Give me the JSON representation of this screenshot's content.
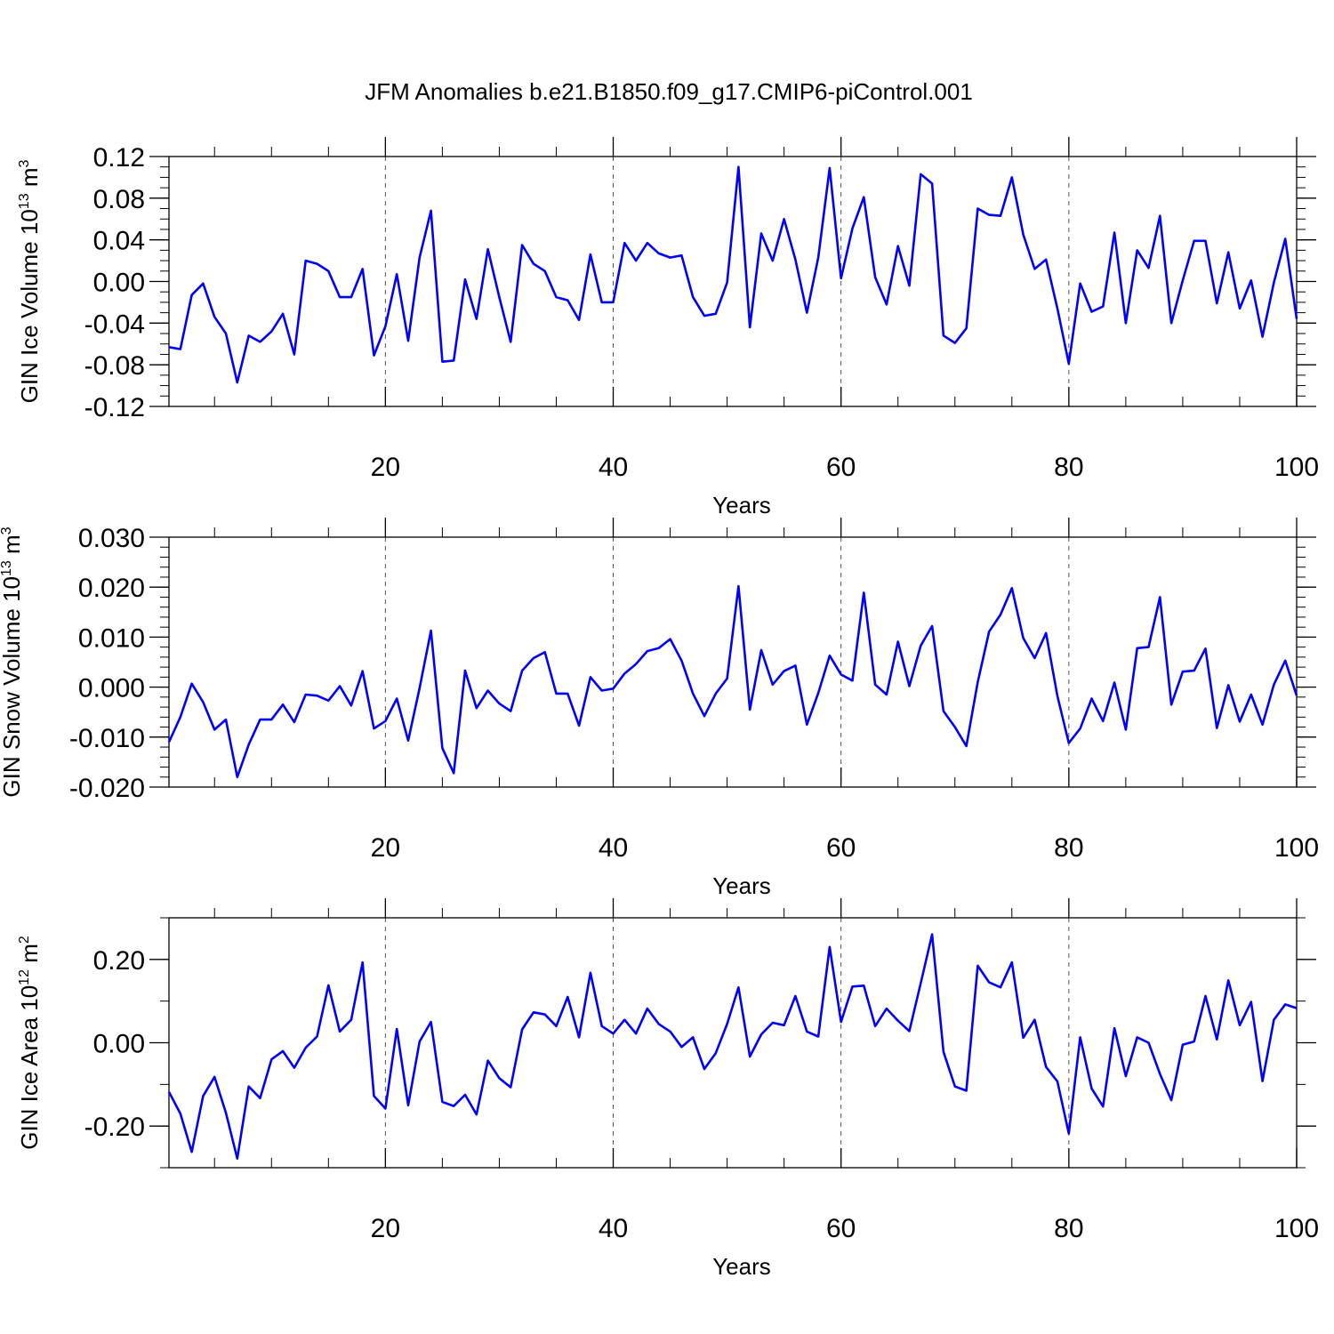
{
  "title": "JFM Anomalies b.e21.B1850.f09_g17.CMIP6-piControl.001",
  "chart_data": [
    {
      "type": "line",
      "panel": "ice-volume",
      "ylabel_main": "GIN Ice Volume 10",
      "ylabel_exp": "13",
      "ylabel_unit": "m",
      "ylabel_unit_exp": "3",
      "xlabel": "Years",
      "xlim": [
        1,
        100
      ],
      "ylim": [
        -0.12,
        0.12
      ],
      "x_ticks": [
        20,
        40,
        60,
        80,
        100
      ],
      "x_tick_labels": [
        "20",
        "40",
        "60",
        "80",
        "100"
      ],
      "y_ticks": [
        -0.12,
        -0.08,
        -0.04,
        0.0,
        0.04,
        0.08,
        0.12
      ],
      "y_tick_labels": [
        "-0.12",
        "-0.08",
        "-0.04",
        "0.00",
        "0.04",
        "0.08",
        "0.12"
      ],
      "y_minor_step": 0.01,
      "grid": "vertical-dashed",
      "color": "#0000ff",
      "x": [
        1,
        2,
        3,
        4,
        5,
        6,
        7,
        8,
        9,
        10,
        11,
        12,
        13,
        14,
        15,
        16,
        17,
        18,
        19,
        20,
        21,
        22,
        23,
        24,
        25,
        26,
        27,
        28,
        29,
        30,
        31,
        32,
        33,
        34,
        35,
        36,
        37,
        38,
        39,
        40,
        41,
        42,
        43,
        44,
        45,
        46,
        47,
        48,
        49,
        50,
        51,
        52,
        53,
        54,
        55,
        56,
        57,
        58,
        59,
        60,
        61,
        62,
        63,
        64,
        65,
        66,
        67,
        68,
        69,
        70,
        71,
        72,
        73,
        74,
        75,
        76,
        77,
        78,
        79,
        80,
        81,
        82,
        83,
        84,
        85,
        86,
        87,
        88,
        89,
        90,
        91,
        92,
        93,
        94,
        95,
        96,
        97,
        98,
        99,
        100
      ],
      "values": [
        -0.063,
        -0.065,
        -0.013,
        -0.002,
        -0.034,
        -0.05,
        -0.097,
        -0.052,
        -0.058,
        -0.048,
        -0.031,
        -0.07,
        0.02,
        0.017,
        0.01,
        -0.015,
        -0.015,
        0.012,
        -0.071,
        -0.043,
        0.007,
        -0.057,
        0.023,
        0.068,
        -0.077,
        -0.076,
        0.002,
        -0.036,
        0.031,
        -0.015,
        -0.058,
        0.035,
        0.017,
        0.01,
        -0.015,
        -0.018,
        -0.037,
        0.026,
        -0.02,
        -0.02,
        0.037,
        0.02,
        0.037,
        0.027,
        0.023,
        0.025,
        -0.015,
        -0.033,
        -0.031,
        -0.001,
        0.11,
        -0.044,
        0.046,
        0.02,
        0.06,
        0.021,
        -0.03,
        0.023,
        0.109,
        0.003,
        0.051,
        0.081,
        0.004,
        -0.022,
        0.034,
        -0.004,
        0.103,
        0.094,
        -0.052,
        -0.059,
        -0.045,
        0.07,
        0.064,
        0.063,
        0.1,
        0.045,
        0.012,
        0.021,
        -0.026,
        -0.079,
        -0.002,
        -0.029,
        -0.024,
        0.047,
        -0.04,
        0.03,
        0.013,
        0.063,
        -0.04,
        0.001,
        0.039,
        0.039,
        -0.021,
        0.028,
        -0.026,
        0.001,
        -0.053,
        -0.001,
        0.041,
        -0.036
      ]
    },
    {
      "type": "line",
      "panel": "snow-volume",
      "ylabel_main": "GIN Snow Volume 10",
      "ylabel_exp": "13",
      "ylabel_unit": "m",
      "ylabel_unit_exp": "3",
      "xlabel": "Years",
      "xlim": [
        1,
        100
      ],
      "ylim": [
        -0.02,
        0.03
      ],
      "x_ticks": [
        20,
        40,
        60,
        80,
        100
      ],
      "x_tick_labels": [
        "20",
        "40",
        "60",
        "80",
        "100"
      ],
      "y_ticks": [
        -0.02,
        -0.01,
        0.0,
        0.01,
        0.02,
        0.03
      ],
      "y_tick_labels": [
        "-0.020",
        "-0.010",
        "0.000",
        "0.010",
        "0.020",
        "0.030"
      ],
      "y_minor_step": 0.002,
      "grid": "vertical-dashed",
      "color": "#0000ff",
      "x": [
        1,
        2,
        3,
        4,
        5,
        6,
        7,
        8,
        9,
        10,
        11,
        12,
        13,
        14,
        15,
        16,
        17,
        18,
        19,
        20,
        21,
        22,
        23,
        24,
        25,
        26,
        27,
        28,
        29,
        30,
        31,
        32,
        33,
        34,
        35,
        36,
        37,
        38,
        39,
        40,
        41,
        42,
        43,
        44,
        45,
        46,
        47,
        48,
        49,
        50,
        51,
        52,
        53,
        54,
        55,
        56,
        57,
        58,
        59,
        60,
        61,
        62,
        63,
        64,
        65,
        66,
        67,
        68,
        69,
        70,
        71,
        72,
        73,
        74,
        75,
        76,
        77,
        78,
        79,
        80,
        81,
        82,
        83,
        84,
        85,
        86,
        87,
        88,
        89,
        90,
        91,
        92,
        93,
        94,
        95,
        96,
        97,
        98,
        99,
        100
      ],
      "values": [
        -0.011,
        -0.006,
        0.0007,
        -0.003,
        -0.0085,
        -0.0065,
        -0.018,
        -0.0115,
        -0.0065,
        -0.0065,
        -0.0035,
        -0.007,
        -0.0015,
        -0.0017,
        -0.0027,
        0.0002,
        -0.0037,
        0.0032,
        -0.0083,
        -0.0068,
        -0.0023,
        -0.0107,
        -0.0002,
        0.0113,
        -0.0122,
        -0.0172,
        0.0033,
        -0.0042,
        -0.0007,
        -0.0033,
        -0.0048,
        0.0033,
        0.0058,
        0.007,
        -0.0013,
        -0.0013,
        -0.0077,
        0.002,
        -0.0007,
        -0.0003,
        0.0027,
        0.0046,
        0.0072,
        0.0078,
        0.0096,
        0.0053,
        -0.0013,
        -0.0058,
        -0.0013,
        0.0017,
        0.0202,
        -0.0045,
        0.0074,
        0.0005,
        0.0032,
        0.0043,
        -0.0075,
        -0.0012,
        0.0063,
        0.0025,
        0.0013,
        0.0189,
        0.0005,
        -0.0015,
        0.0091,
        0.0002,
        0.0083,
        0.0122,
        -0.0048,
        -0.008,
        -0.0118,
        0.001,
        0.0111,
        0.0145,
        0.0198,
        0.0098,
        0.0058,
        0.0108,
        -0.0018,
        -0.0112,
        -0.0083,
        -0.0023,
        -0.0068,
        0.0009,
        -0.0085,
        0.0078,
        0.008,
        0.018,
        -0.0035,
        0.0031,
        0.0033,
        0.0077,
        -0.0082,
        0.0004,
        -0.0069,
        -0.0015,
        -0.0075,
        0.0005,
        0.0053,
        -0.0017
      ]
    },
    {
      "type": "line",
      "panel": "ice-area",
      "ylabel_main": "GIN Ice Area 10",
      "ylabel_exp": "12",
      "ylabel_unit": "m",
      "ylabel_unit_exp": "2",
      "xlabel": "Years",
      "xlim": [
        1,
        100
      ],
      "ylim": [
        -0.3,
        0.3
      ],
      "x_ticks": [
        20,
        40,
        60,
        80,
        100
      ],
      "x_tick_labels": [
        "20",
        "40",
        "60",
        "80",
        "100"
      ],
      "y_ticks": [
        -0.2,
        0.0,
        0.2
      ],
      "y_tick_labels": [
        "-0.20",
        "0.00",
        "0.20"
      ],
      "y_minor_step": 0.1,
      "grid": "vertical-dashed",
      "color": "#0000ff",
      "x": [
        1,
        2,
        3,
        4,
        5,
        6,
        7,
        8,
        9,
        10,
        11,
        12,
        13,
        14,
        15,
        16,
        17,
        18,
        19,
        20,
        21,
        22,
        23,
        24,
        25,
        26,
        27,
        28,
        29,
        30,
        31,
        32,
        33,
        34,
        35,
        36,
        37,
        38,
        39,
        40,
        41,
        42,
        43,
        44,
        45,
        46,
        47,
        48,
        49,
        50,
        51,
        52,
        53,
        54,
        55,
        56,
        57,
        58,
        59,
        60,
        61,
        62,
        63,
        64,
        65,
        66,
        67,
        68,
        69,
        70,
        71,
        72,
        73,
        74,
        75,
        76,
        77,
        78,
        79,
        80,
        81,
        82,
        83,
        84,
        85,
        86,
        87,
        88,
        89,
        90,
        91,
        92,
        93,
        94,
        95,
        96,
        97,
        98,
        99,
        100
      ],
      "values": [
        -0.118,
        -0.17,
        -0.262,
        -0.128,
        -0.082,
        -0.168,
        -0.278,
        -0.105,
        -0.133,
        -0.04,
        -0.02,
        -0.06,
        -0.012,
        0.015,
        0.138,
        0.027,
        0.055,
        0.193,
        -0.128,
        -0.158,
        0.033,
        -0.15,
        0.003,
        0.05,
        -0.142,
        -0.152,
        -0.125,
        -0.172,
        -0.043,
        -0.085,
        -0.107,
        0.032,
        0.073,
        0.068,
        0.04,
        0.11,
        0.013,
        0.168,
        0.04,
        0.022,
        0.055,
        0.022,
        0.082,
        0.045,
        0.027,
        -0.01,
        0.013,
        -0.063,
        -0.025,
        0.045,
        0.133,
        -0.033,
        0.02,
        0.048,
        0.042,
        0.112,
        0.027,
        0.015,
        0.23,
        0.05,
        0.135,
        0.137,
        0.04,
        0.082,
        0.053,
        0.028,
        0.143,
        0.26,
        -0.022,
        -0.105,
        -0.115,
        0.185,
        0.145,
        0.133,
        0.193,
        0.012,
        0.055,
        -0.058,
        -0.093,
        -0.218,
        0.013,
        -0.11,
        -0.153,
        0.035,
        -0.08,
        0.013,
        0.0,
        -0.075,
        -0.138,
        -0.005,
        0.003,
        0.112,
        0.008,
        0.15,
        0.042,
        0.098,
        -0.092,
        0.055,
        0.092,
        0.083
      ]
    }
  ]
}
